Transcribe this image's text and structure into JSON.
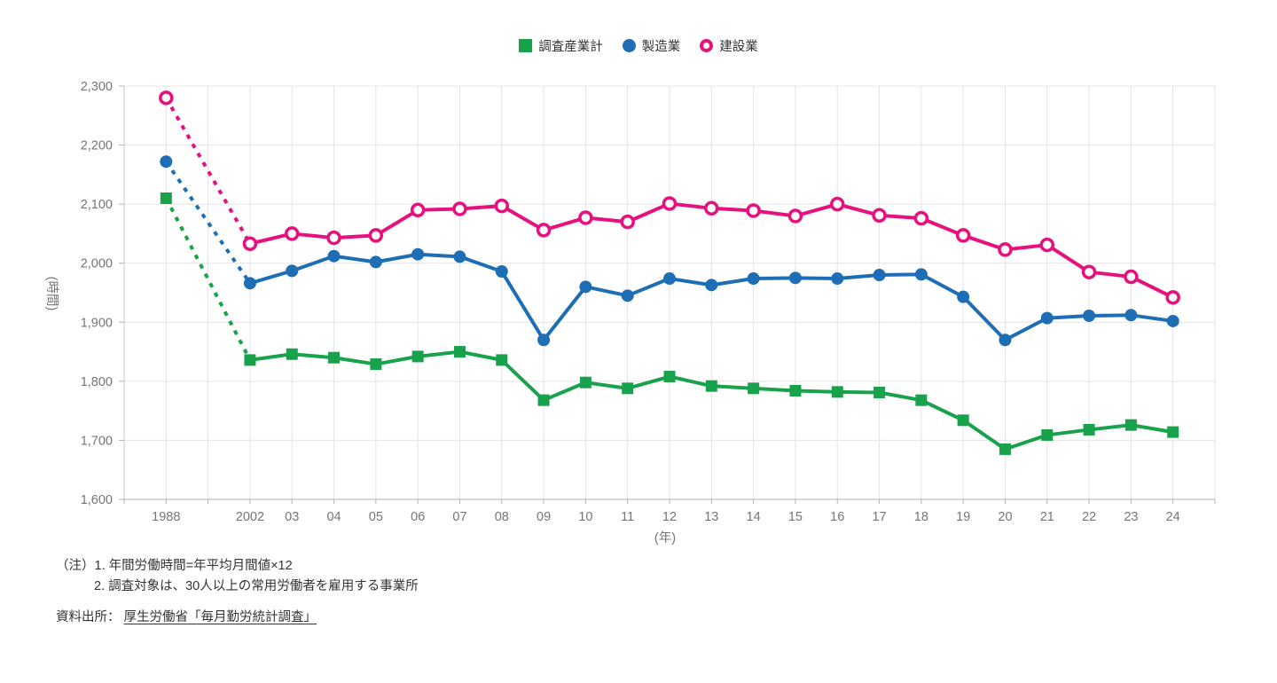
{
  "chart_data": {
    "type": "line",
    "ylabel": "(時間)",
    "xlabel": "(年)",
    "ylim": [
      1600,
      2300
    ],
    "yticks": [
      1600,
      1700,
      1800,
      1900,
      2000,
      2100,
      2200,
      2300
    ],
    "ytick_labels": [
      "1,600",
      "1,700",
      "1,800",
      "1,900",
      "2,000",
      "2,100",
      "2,200",
      "2,300"
    ],
    "categories": [
      "1988",
      "2002",
      "03",
      "04",
      "05",
      "06",
      "07",
      "08",
      "09",
      "10",
      "11",
      "12",
      "13",
      "14",
      "15",
      "16",
      "17",
      "18",
      "19",
      "20",
      "21",
      "22",
      "23",
      "24"
    ],
    "x_slots": [
      0,
      2,
      3,
      4,
      5,
      6,
      7,
      8,
      9,
      10,
      11,
      12,
      13,
      14,
      15,
      16,
      17,
      18,
      19,
      20,
      21,
      22,
      23,
      24
    ],
    "grid": true,
    "legend_position": "top-center",
    "axis_break_note": "dashed line segment between 1988 and 2002",
    "series": [
      {
        "name": "調査産業計",
        "marker": "square",
        "color": "#18a24b",
        "values": [
          2110,
          1836,
          1846,
          1840,
          1829,
          1842,
          1850,
          1836,
          1768,
          1798,
          1788,
          1808,
          1792,
          1788,
          1784,
          1782,
          1781,
          1768,
          1734,
          1685,
          1709,
          1718,
          1726,
          1714
        ]
      },
      {
        "name": "製造業",
        "marker": "circle",
        "color": "#1d6eb5",
        "values": [
          2172,
          1966,
          1987,
          2012,
          2002,
          2015,
          2011,
          1986,
          1870,
          1960,
          1945,
          1974,
          1963,
          1974,
          1975,
          1974,
          1980,
          1981,
          1943,
          1870,
          1907,
          1911,
          1912,
          1902
        ]
      },
      {
        "name": "建設業",
        "marker": "ring",
        "color": "#e7117e",
        "values": [
          2280,
          2033,
          2050,
          2043,
          2047,
          2090,
          2092,
          2097,
          2056,
          2077,
          2070,
          2101,
          2093,
          2089,
          2080,
          2100,
          2081,
          2076,
          2047,
          2023,
          2031,
          1985,
          1977,
          1942
        ]
      }
    ]
  },
  "notes": {
    "label": "（注）",
    "line1": "1. 年間労働時間=年平均月間値×12",
    "line2": "2. 調査対象は、30人以上の常用労働者を雇用する事業所"
  },
  "source": {
    "label": "資料出所：",
    "link_text": "厚生労働省「毎月勤労統計調査」"
  },
  "colors": {
    "grid": "#e4e4e4",
    "axis": "#b1b1b1",
    "tick_text": "#757575"
  }
}
